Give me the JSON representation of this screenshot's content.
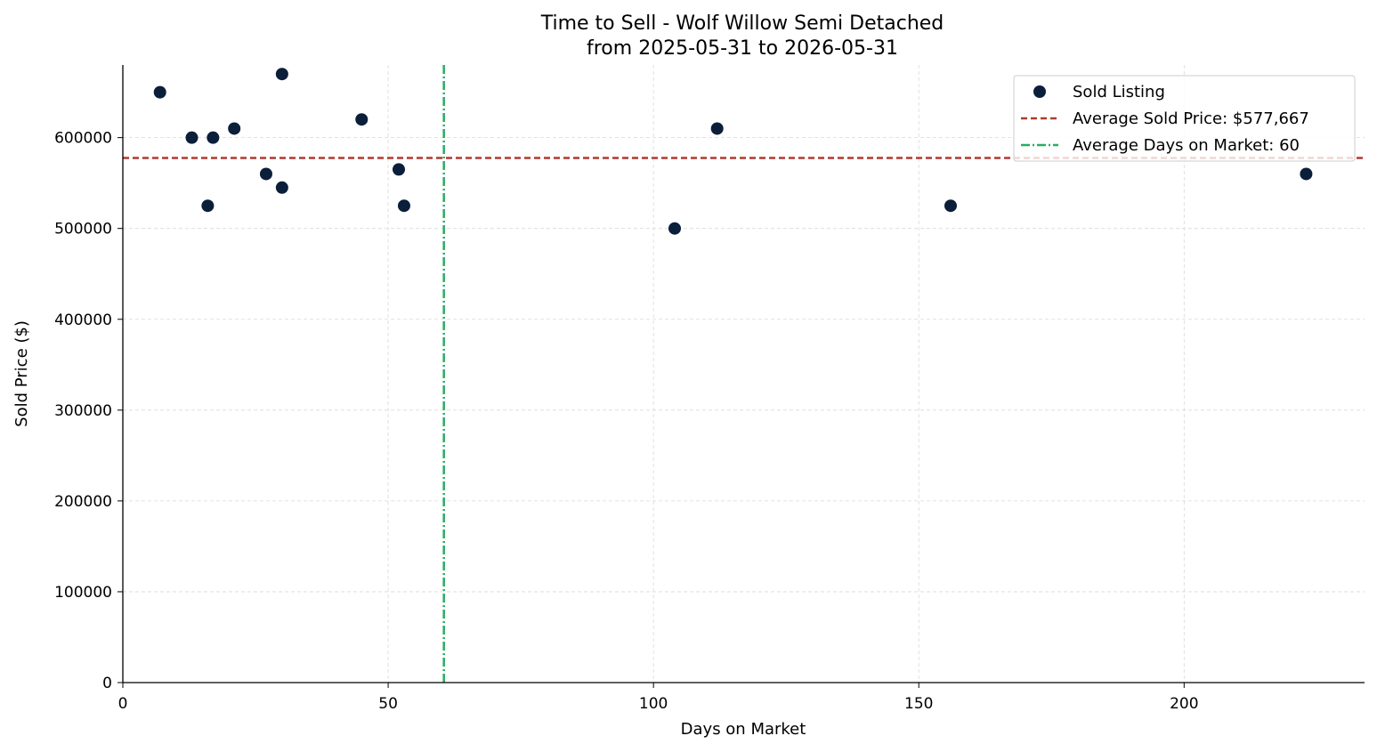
{
  "chart_data": {
    "type": "scatter",
    "title": "Time to Sell - Wolf Willow Semi Detached",
    "subtitle": "from 2025-05-31 to 2026-05-31",
    "xlabel": "Days on Market",
    "ylabel": "Sold Price ($)",
    "xlim": [
      0,
      234
    ],
    "ylim": [
      0,
      680000
    ],
    "xticks": [
      0,
      50,
      100,
      150,
      200
    ],
    "yticks": [
      0,
      100000,
      200000,
      300000,
      400000,
      500000,
      600000
    ],
    "grid": true,
    "legend_position": "top-right",
    "series": [
      {
        "name": "Sold Listing",
        "color": "#0b1e3a",
        "points": [
          {
            "x": 7,
            "y": 650000
          },
          {
            "x": 13,
            "y": 600000
          },
          {
            "x": 16,
            "y": 525000
          },
          {
            "x": 17,
            "y": 600000
          },
          {
            "x": 21,
            "y": 610000
          },
          {
            "x": 27,
            "y": 560000
          },
          {
            "x": 30,
            "y": 670000
          },
          {
            "x": 30,
            "y": 545000
          },
          {
            "x": 45,
            "y": 620000
          },
          {
            "x": 52,
            "y": 565000
          },
          {
            "x": 53,
            "y": 525000
          },
          {
            "x": 104,
            "y": 500000
          },
          {
            "x": 112,
            "y": 610000
          },
          {
            "x": 156,
            "y": 525000
          },
          {
            "x": 223,
            "y": 560000
          }
        ]
      }
    ],
    "reference_lines": [
      {
        "name": "Average Sold Price: $577,667",
        "orientation": "horizontal",
        "value": 577667,
        "color": "#b03a2e",
        "style": "dashed"
      },
      {
        "name": "Average Days on Market: 60",
        "orientation": "vertical",
        "value": 60.5,
        "color": "#27ae60",
        "style": "dashdot"
      }
    ]
  }
}
